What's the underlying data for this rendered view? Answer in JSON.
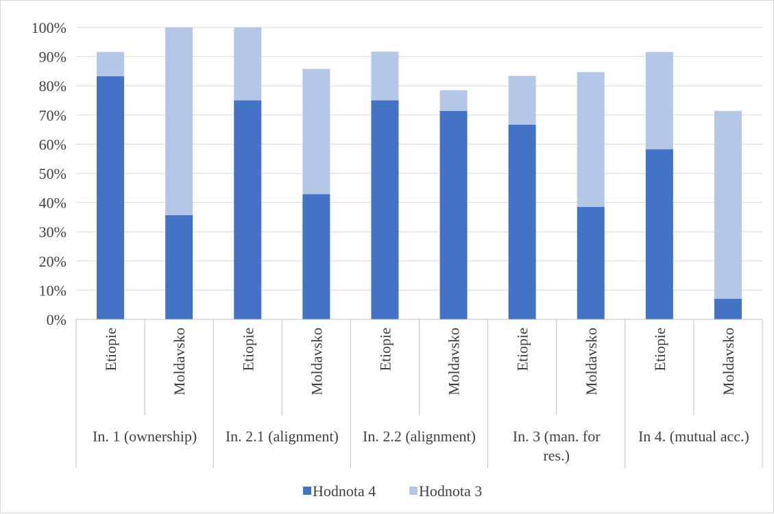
{
  "chart_data": {
    "type": "bar",
    "stacked": true,
    "y_ticks": [
      "0%",
      "10%",
      "20%",
      "30%",
      "40%",
      "50%",
      "60%",
      "70%",
      "80%",
      "90%",
      "100%"
    ],
    "ylim": [
      0,
      100
    ],
    "grid": true,
    "legend_position": "bottom",
    "groups": [
      {
        "label_lines": [
          "In. 1 (ownership)"
        ],
        "categories": [
          "Etiopie",
          "Moldavsko"
        ]
      },
      {
        "label_lines": [
          "In. 2.1 (alignment)"
        ],
        "categories": [
          "Etiopie",
          "Moldavsko"
        ]
      },
      {
        "label_lines": [
          "In. 2.2 (alignment)"
        ],
        "categories": [
          "Etiopie",
          "Moldavsko"
        ]
      },
      {
        "label_lines": [
          "In. 3 (man. for",
          "res.)"
        ],
        "categories": [
          "Etiopie",
          "Moldavsko"
        ]
      },
      {
        "label_lines": [
          "In 4. (mutual acc.)"
        ],
        "categories": [
          "Etiopie",
          "Moldavsko"
        ]
      }
    ],
    "series": [
      {
        "name": "Hodnota 4",
        "color": "#4472c4",
        "values": [
          83.3,
          35.7,
          75.0,
          42.9,
          75.0,
          71.4,
          66.7,
          38.5,
          58.3,
          7.1
        ]
      },
      {
        "name": "Hodnota 3",
        "color": "#b4c7e7",
        "values": [
          8.3,
          64.3,
          25.0,
          42.9,
          16.7,
          7.1,
          16.7,
          46.2,
          33.3,
          64.3
        ]
      }
    ]
  }
}
